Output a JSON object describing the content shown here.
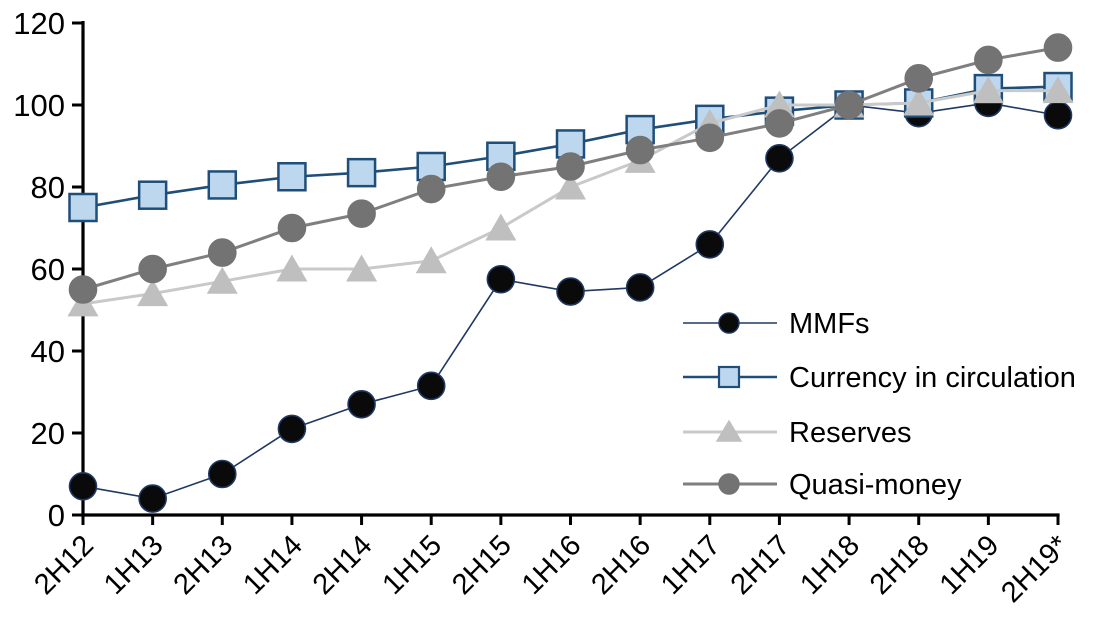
{
  "chart_data": {
    "type": "line",
    "title": "",
    "xlabel": "",
    "ylabel": "",
    "categories": [
      "2H12",
      "1H13",
      "2H13",
      "1H14",
      "2H14",
      "1H15",
      "2H15",
      "1H16",
      "2H16",
      "1H17",
      "2H17",
      "1H18",
      "2H18",
      "1H19",
      "2H19*"
    ],
    "series": [
      {
        "name": "MMFs",
        "marker": "circle",
        "line_color": "#1F3864",
        "marker_fill": "#0a0a0a",
        "marker_stroke": "#1F3864",
        "line_width": 1.6,
        "values": [
          7,
          4,
          10,
          21,
          27,
          31.5,
          57.5,
          54.5,
          55.5,
          66,
          87,
          100,
          98,
          100.5,
          97.5
        ]
      },
      {
        "name": "Currency in circulation",
        "marker": "square",
        "line_color": "#1F4E79",
        "marker_fill": "#BDD7EE",
        "marker_stroke": "#1F4E79",
        "line_width": 2.6,
        "values": [
          75,
          78,
          80.5,
          82.5,
          83.5,
          85,
          87.5,
          90.5,
          94,
          96.5,
          98.5,
          100,
          100.5,
          104,
          104.5
        ]
      },
      {
        "name": "Reserves",
        "marker": "triangle",
        "line_color": "#C9C9C9",
        "marker_fill": "#BFBFBF",
        "marker_stroke": "#BFBFBF",
        "line_width": 3,
        "values": [
          51.5,
          54,
          57,
          60,
          60,
          62,
          70,
          80,
          86.5,
          95.5,
          100,
          100,
          100.5,
          103.5,
          103.5
        ]
      },
      {
        "name": "Quasi-money",
        "marker": "circle",
        "line_color": "#7F7F7F",
        "marker_fill": "#737373",
        "marker_stroke": "#737373",
        "line_width": 3,
        "values": [
          55,
          60,
          64,
          70,
          73.5,
          79.5,
          82.5,
          85,
          89,
          92,
          95.5,
          100,
          106.5,
          111,
          114
        ]
      }
    ],
    "yticks": [
      0,
      20,
      40,
      60,
      80,
      100,
      120
    ],
    "ylim": [
      0,
      120
    ],
    "grid": false,
    "legend_position": "inside-right",
    "axis_color": "#000000",
    "background_color": "#FFFFFF"
  }
}
